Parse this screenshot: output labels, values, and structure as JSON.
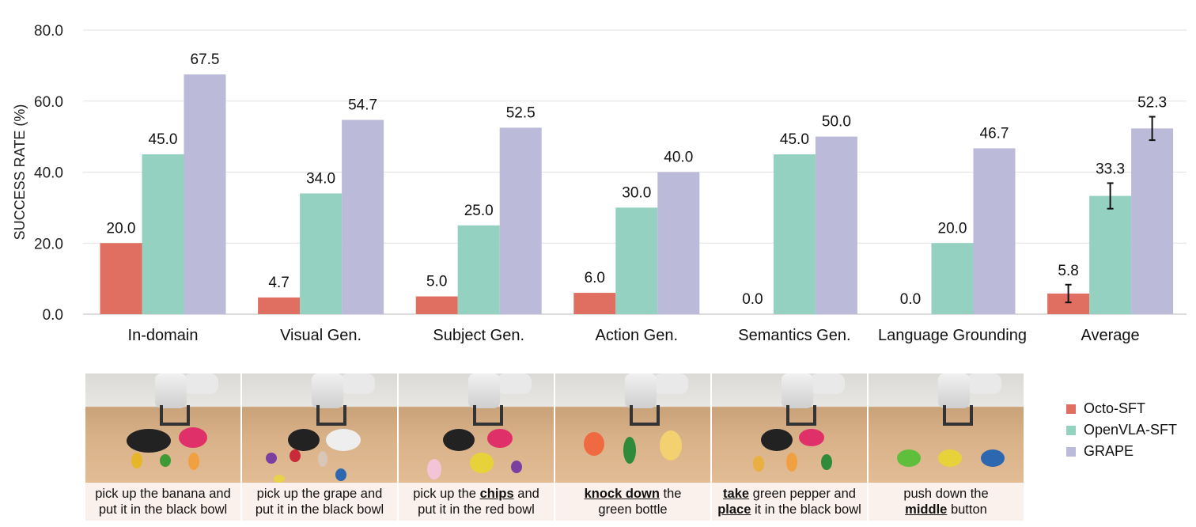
{
  "chart_data": {
    "type": "bar",
    "ylabel": "SUCCESS RATE (%)",
    "ylim": [
      0,
      80
    ],
    "yticks": [
      "0.0",
      "20.0",
      "40.0",
      "60.0",
      "80.0"
    ],
    "grid": true,
    "categories": [
      "In-domain",
      "Visual Gen.",
      "Subject Gen.",
      "Action Gen.",
      "Semantics Gen.",
      "Language Grounding",
      "Average"
    ],
    "series": [
      {
        "name": "Octo-SFT",
        "color": "#e06f61",
        "values": [
          20.0,
          4.7,
          5.0,
          6.0,
          0.0,
          0.0,
          5.8
        ],
        "labels": [
          "20.0",
          "4.7",
          "5.0",
          "6.0",
          "0.0",
          "0.0",
          "5.8"
        ],
        "error": [
          null,
          null,
          null,
          null,
          null,
          null,
          2.5
        ]
      },
      {
        "name": "OpenVLA-SFT",
        "color": "#95d1c1",
        "values": [
          45.0,
          34.0,
          25.0,
          30.0,
          45.0,
          20.0,
          33.3
        ],
        "labels": [
          "45.0",
          "34.0",
          "25.0",
          "30.0",
          "45.0",
          "20.0",
          "33.3"
        ],
        "error": [
          null,
          null,
          null,
          null,
          null,
          null,
          3.6
        ]
      },
      {
        "name": "GRAPE",
        "color": "#bbbad8",
        "values": [
          67.5,
          54.7,
          52.5,
          40.0,
          50.0,
          46.7,
          52.3
        ],
        "labels": [
          "67.5",
          "54.7",
          "52.5",
          "40.0",
          "50.0",
          "46.7",
          "52.3"
        ],
        "error": [
          null,
          null,
          null,
          null,
          null,
          null,
          3.3
        ]
      }
    ],
    "legend_position": "bottom-right"
  },
  "tasks": [
    {
      "line1": [
        {
          "t": "pick up the banana and",
          "b": false
        }
      ],
      "line2": [
        {
          "t": "put it in the black bowl",
          "b": false
        }
      ]
    },
    {
      "line1": [
        {
          "t": "pick up the grape and",
          "b": false
        }
      ],
      "line2": [
        {
          "t": "put it in the black bowl",
          "b": false
        }
      ]
    },
    {
      "line1": [
        {
          "t": "pick up the ",
          "b": false
        },
        {
          "t": "chips",
          "b": true
        },
        {
          "t": " and",
          "b": false
        }
      ],
      "line2": [
        {
          "t": "put it in the red bowl",
          "b": false
        }
      ]
    },
    {
      "line1": [
        {
          "t": "knock down",
          "b": true
        },
        {
          "t": " the",
          "b": false
        }
      ],
      "line2": [
        {
          "t": "green bottle",
          "b": false
        }
      ]
    },
    {
      "line1": [
        {
          "t": "take",
          "b": true
        },
        {
          "t": " green pepper and",
          "b": false
        }
      ],
      "line2": [
        {
          "t": "place",
          "b": true
        },
        {
          "t": " it in the black bowl",
          "b": false
        }
      ]
    },
    {
      "line1": [
        {
          "t": "push down the",
          "b": false
        }
      ],
      "line2": [
        {
          "t": "middle",
          "b": true
        },
        {
          "t": " button",
          "b": false
        }
      ]
    }
  ]
}
